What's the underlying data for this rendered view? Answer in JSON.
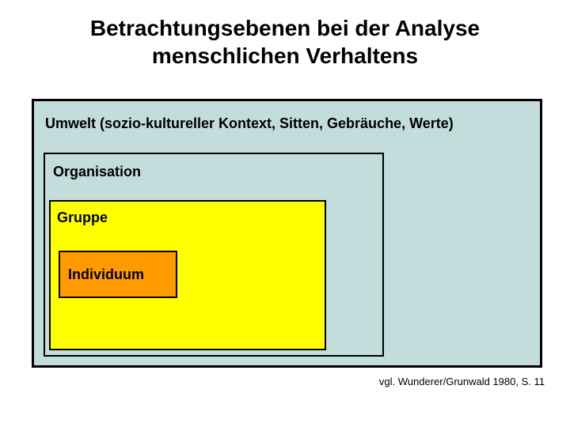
{
  "diagram": {
    "type": "nested-boxes",
    "title_line1": "Betrachtungsebenen bei der Analyse",
    "title_line2": "menschlichen Verhaltens",
    "title_fontsize": 28,
    "title_weight": "bold",
    "title_color": "#000000",
    "background_color": "#ffffff",
    "citation": "vgl. Wunderer/Grunwald 1980, S. 11",
    "citation_fontsize": 13,
    "levels": [
      {
        "id": "umwelt",
        "label": "Umwelt (sozio-kultureller Kontext, Sitten, Gebräuche, Werte)",
        "fill": "#c3dcdc",
        "border_color": "#000000",
        "border_width": 3,
        "label_fontsize": 18,
        "label_weight": "bold"
      },
      {
        "id": "organisation",
        "label": "Organisation",
        "fill": "#c3dcdc",
        "border_color": "#000000",
        "border_width": 2,
        "label_fontsize": 18,
        "label_weight": "bold"
      },
      {
        "id": "gruppe",
        "label": "Gruppe",
        "fill": "#ffff00",
        "border_color": "#000000",
        "border_width": 2,
        "label_fontsize": 18,
        "label_weight": "bold"
      },
      {
        "id": "individuum",
        "label": "Individuum",
        "fill": "#ff9a00",
        "border_color": "#000000",
        "border_width": 2,
        "label_fontsize": 18,
        "label_weight": "bold"
      }
    ]
  }
}
